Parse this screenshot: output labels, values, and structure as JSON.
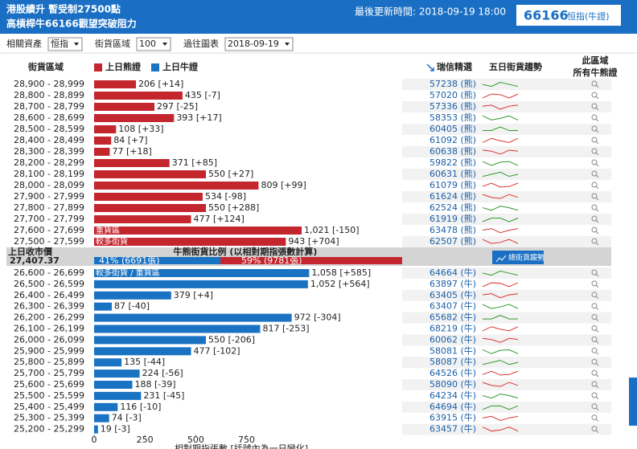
{
  "header": {
    "title_line1": "港股績升 暫受制27500點",
    "title_line2": "高槓桿牛66166觀望突破阻力",
    "updated": "最後更新時間: 2018-09-19 18:00",
    "featured_code": "66166",
    "featured_label": "恒指(牛證)"
  },
  "filters": [
    {
      "label": "相關資產",
      "value": "恒指"
    },
    {
      "label": "街貨區域",
      "value": "100"
    },
    {
      "label": "過往圖表",
      "value": "2018-09-19"
    }
  ],
  "columns": {
    "range": "街貨區域",
    "bear_legend": "上日熊證",
    "bull_legend": "上日牛證",
    "picks": "瑞信精選",
    "trend": "五日街貨趨勢",
    "all": [
      "此區域",
      "所有牛熊證"
    ]
  },
  "colors": {
    "bear": "#c4262e",
    "bull": "#1a73c2"
  },
  "bear_rows": [
    {
      "range": "28,900 - 28,999",
      "value": 206,
      "change": "[+14]",
      "code": "57238 (熊)"
    },
    {
      "range": "28,800 - 28,899",
      "value": 435,
      "change": "[-7]",
      "code": "57020 (熊)"
    },
    {
      "range": "28,700 - 28,799",
      "value": 297,
      "change": "[-25]",
      "code": "57336 (熊)"
    },
    {
      "range": "28,600 - 28,699",
      "value": 393,
      "change": "[+17]",
      "code": "58353 (熊)"
    },
    {
      "range": "28,500 - 28,599",
      "value": 108,
      "change": "[+33]",
      "code": "60405 (熊)"
    },
    {
      "range": "28,400 - 28,499",
      "value": 84,
      "change": "[+7]",
      "code": "61092 (熊)"
    },
    {
      "range": "28,300 - 28,399",
      "value": 77,
      "change": "[+18]",
      "code": "60638 (熊)"
    },
    {
      "range": "28,200 - 28,299",
      "value": 371,
      "change": "[+85]",
      "code": "59822 (熊)"
    },
    {
      "range": "28,100 - 28,199",
      "value": 550,
      "change": "[+27]",
      "code": "60631 (熊)"
    },
    {
      "range": "28,000 - 28,099",
      "value": 809,
      "change": "[+99]",
      "code": "61079 (熊)"
    },
    {
      "range": "27,900 - 27,999",
      "value": 534,
      "change": "[-98]",
      "code": "61624 (熊)"
    },
    {
      "range": "27,800 - 27,899",
      "value": 550,
      "change": "[+288]",
      "code": "62524 (熊)"
    },
    {
      "range": "27,700 - 27,799",
      "value": 477,
      "change": "[+124]",
      "code": "61919 (熊)"
    },
    {
      "range": "27,600 - 27,699",
      "value": 1021,
      "value_label": "1,021",
      "change": "[-150]",
      "code": "63478 (熊)",
      "tag": "重貨區"
    },
    {
      "range": "27,500 - 27,599",
      "value": 943,
      "change": "[+704]",
      "code": "62507 (熊)",
      "tag": "較多街貨"
    }
  ],
  "summary": {
    "close_label": "上日收市價",
    "close": "27,407.37",
    "ratio_title": "牛熊街貨比例 (以相對期指張數計算)",
    "bull_pct": 41,
    "bull_label": "41% (6691張)",
    "bear_pct": 59,
    "bear_label": "59% (9781張)",
    "button": "總街貨趨勢"
  },
  "bull_rows": [
    {
      "range": "26,600 - 26,699",
      "value": 1058,
      "value_label": "1,058",
      "change": "[+585]",
      "code": "64664 (牛)",
      "tag": "較多街貨 / 重貨區"
    },
    {
      "range": "26,500 - 26,599",
      "value": 1052,
      "value_label": "1,052",
      "change": "[+564]",
      "code": "63897 (牛)"
    },
    {
      "range": "26,400 - 26,499",
      "value": 379,
      "change": "[+4]",
      "code": "63405 (牛)"
    },
    {
      "range": "26,300 - 26,399",
      "value": 87,
      "change": "[-40]",
      "code": "63407 (牛)"
    },
    {
      "range": "26,200 - 26,299",
      "value": 972,
      "change": "[-304]",
      "code": "65682 (牛)"
    },
    {
      "range": "26,100 - 26,199",
      "value": 817,
      "change": "[-253]",
      "code": "68219 (牛)"
    },
    {
      "range": "26,000 - 26,099",
      "value": 550,
      "change": "[-206]",
      "code": "60062 (牛)"
    },
    {
      "range": "25,900 - 25,999",
      "value": 477,
      "change": "[-102]",
      "code": "58081 (牛)"
    },
    {
      "range": "25,800 - 25,899",
      "value": 135,
      "change": "[-44]",
      "code": "58087 (牛)"
    },
    {
      "range": "25,700 - 25,799",
      "value": 224,
      "change": "[-56]",
      "code": "64526 (牛)"
    },
    {
      "range": "25,600 - 25,699",
      "value": 188,
      "change": "[-39]",
      "code": "58090 (牛)"
    },
    {
      "range": "25,500 - 25,599",
      "value": 231,
      "change": "[-45]",
      "code": "64234 (牛)"
    },
    {
      "range": "25,400 - 25,499",
      "value": 116,
      "change": "[-10]",
      "code": "64694 (牛)"
    },
    {
      "range": "25,300 - 25,399",
      "value": 74,
      "change": "[-3]",
      "code": "63915 (牛)"
    },
    {
      "range": "25,200 - 25,299",
      "value": 19,
      "change": "[-3]",
      "code": "63457 (牛)"
    }
  ],
  "axis": {
    "xlim": [
      0,
      1100
    ],
    "xticks": [
      0,
      250,
      500,
      750
    ],
    "label": "相對期指張數 [括號內為一日變化]"
  }
}
